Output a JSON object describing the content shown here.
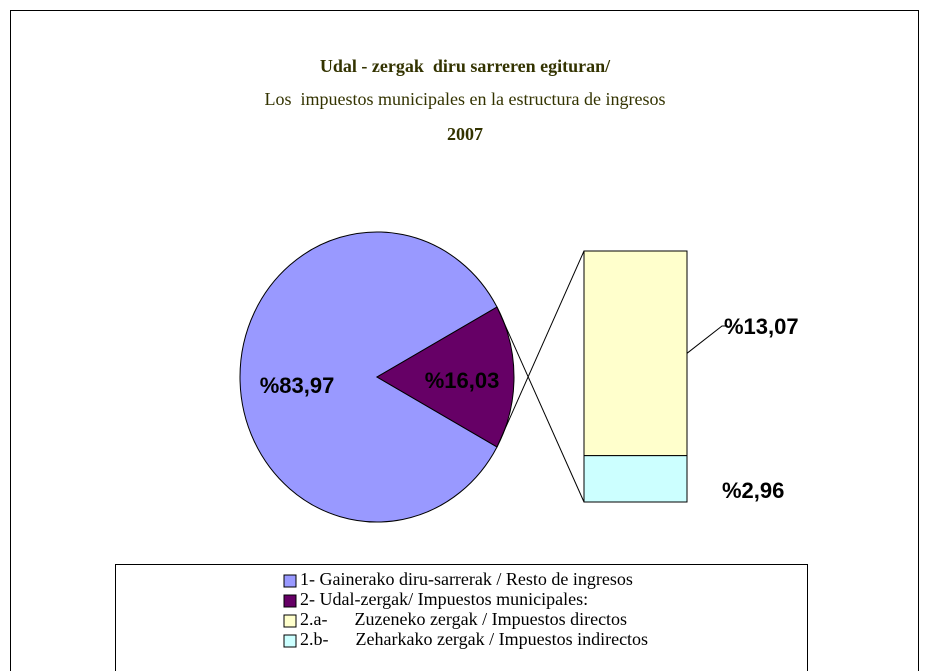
{
  "chart_data": {
    "type": "pie-of-bar",
    "title": "Udal - zergak  diru sarreren egituran/",
    "subtitle": "Los  impuestos municipales en la estructura de ingresos",
    "year": "2007",
    "pie": {
      "categories": [
        "1- Gainerako diru-sarrerak / Resto de ingresos",
        "2- Udal-zergak/ Impuestos municipales:"
      ],
      "values": [
        83.97,
        16.03
      ],
      "value_labels": [
        "%83,97",
        "%16,03"
      ],
      "colors": [
        "#9999ff",
        "#660066"
      ]
    },
    "bar": {
      "categories": [
        "2.a-      Zuzeneko zergak / Impuestos directos",
        "2.b-      Zeharkako zergak / Impuestos indirectos"
      ],
      "values": [
        13.07,
        2.96
      ],
      "value_labels": [
        "%13,07",
        "%2,96"
      ],
      "colors": [
        "#ffffcc",
        "#ccffff"
      ]
    }
  }
}
